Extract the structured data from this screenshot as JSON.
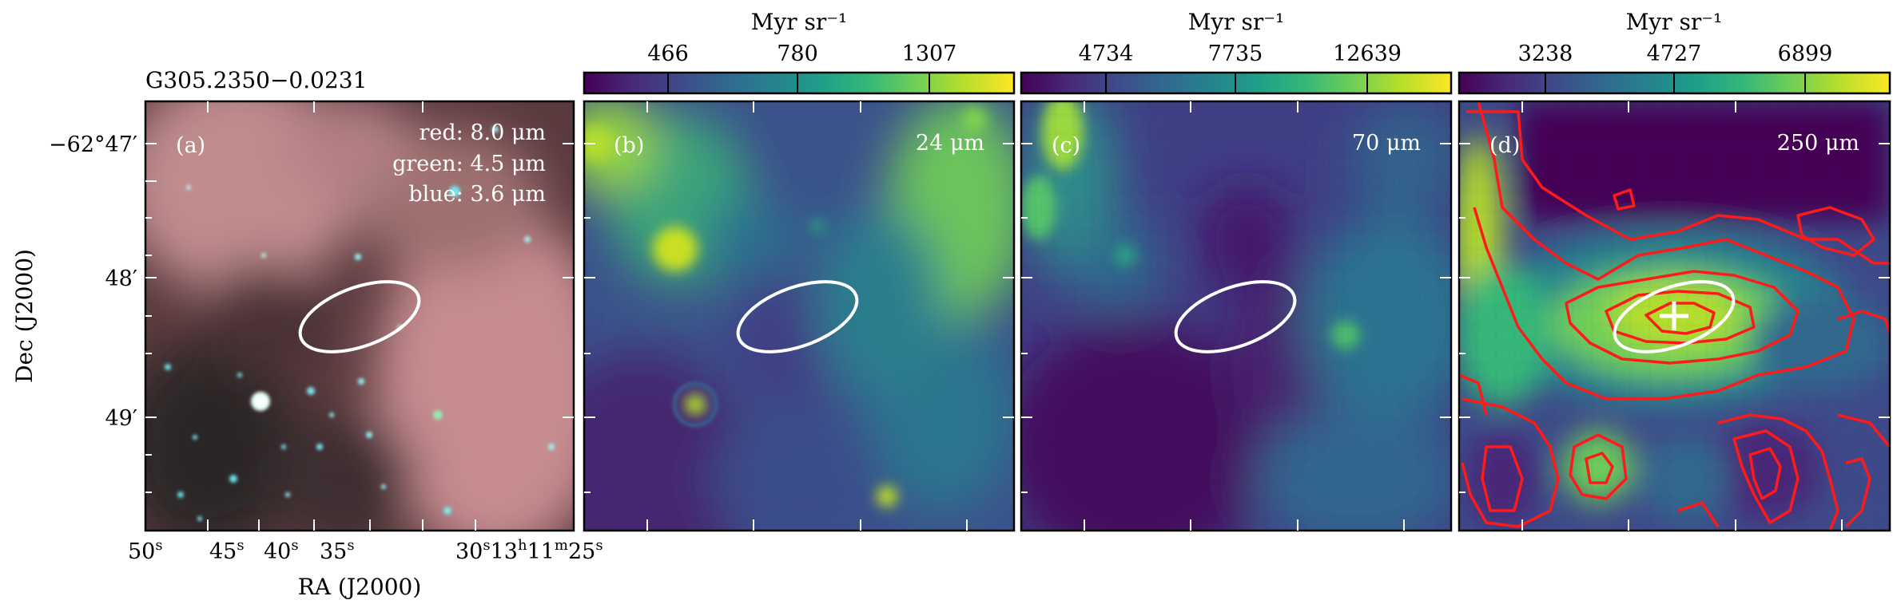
{
  "figure": {
    "source_name": "G305.2350−0.0231",
    "ra_axis_label": "RA (J2000)",
    "dec_axis_label": "Dec (J2000)",
    "dec_ticks": [
      "−62°47′",
      "48′",
      "49′"
    ],
    "ra_ticks": [
      {
        "value": "50",
        "unit": "s"
      },
      {
        "value": "45",
        "unit": "s"
      },
      {
        "value": "40",
        "unit": "s"
      },
      {
        "value": "35",
        "unit": "s"
      },
      {
        "value": "30",
        "unit": "s"
      },
      {
        "value": "13",
        "unit": "h"
      },
      {
        "value": "11",
        "unit": "m"
      },
      {
        "value": "25",
        "unit": "s"
      }
    ]
  },
  "panels": [
    {
      "letter": "(a)",
      "labels": [
        "red: 8.0 μm",
        "green: 4.5 μm",
        "blue: 3.6 μm"
      ],
      "colorbar": null
    },
    {
      "letter": "(b)",
      "labels": [
        "24 μm"
      ],
      "colorbar": {
        "unit": "Myr sr⁻¹",
        "ticks": [
          "466",
          "780",
          "1307"
        ]
      }
    },
    {
      "letter": "(c)",
      "labels": [
        "70 μm"
      ],
      "colorbar": {
        "unit": "Myr sr⁻¹",
        "ticks": [
          "4734",
          "7735",
          "12639"
        ]
      }
    },
    {
      "letter": "(d)",
      "labels": [
        "250 μm"
      ],
      "colorbar": {
        "unit": "Myr sr⁻¹",
        "ticks": [
          "3238",
          "4727",
          "6899"
        ]
      }
    }
  ],
  "colors": {
    "viridis": [
      "#440154",
      "#482878",
      "#3e4a89",
      "#31688e",
      "#26828e",
      "#1f9e89",
      "#35b779",
      "#6ece58",
      "#b5de2b",
      "#fde725"
    ],
    "ellipse": "#ffffff",
    "contour": "#ff1a1a",
    "frame": "#000000"
  }
}
